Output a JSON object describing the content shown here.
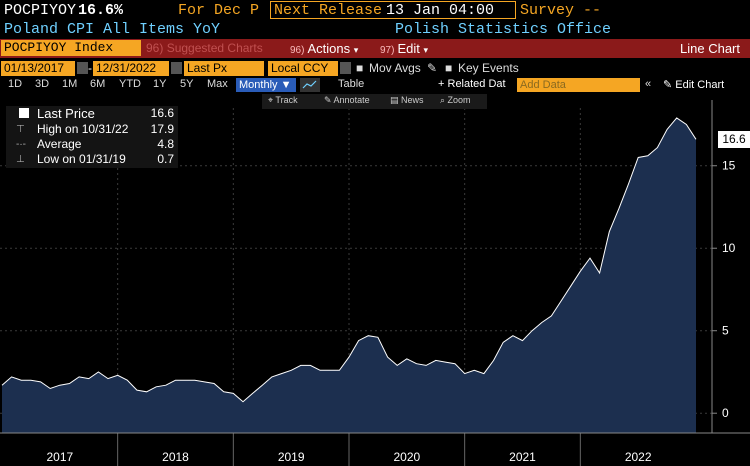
{
  "header": {
    "ticker": "POCPIYOY",
    "ticker_value": "16.6%",
    "for_label": "For Dec P",
    "next_release_label": "Next Release",
    "next_release_value": "13 Jan 04:00",
    "survey_label": "Survey --",
    "security_name": "Poland CPI All Items YoY",
    "source": "Polish Statistics Office"
  },
  "menu_bar": {
    "index_field": "POCPIYOY Index",
    "suggested_label": "Suggested Charts",
    "suggested_num": "96",
    "actions_num": "96)",
    "actions_label": "Actions",
    "edit_num": "97)",
    "edit_label": "Edit",
    "view_label": "Line Chart"
  },
  "controls": {
    "start_date": "01/13/2017",
    "date_sep": "-",
    "end_date": "12/31/2022",
    "price_field": "Last Px",
    "currency_field": "Local CCY",
    "mov_avgs": "Mov Avgs",
    "key_events": "Key Events",
    "periods": [
      "1D",
      "3D",
      "1M",
      "6M",
      "YTD",
      "1Y",
      "5Y",
      "Max"
    ],
    "frequency": "Monthly",
    "table_label": "Table",
    "related_data": "Related Dat",
    "add_data_placeholder": "Add Data",
    "collapse_glyph": "«",
    "edit_chart": "Edit Chart"
  },
  "tools": {
    "track": "Track",
    "annotate": "Annotate",
    "news": "News",
    "zoom": "Zoom"
  },
  "legend": {
    "last_price_label": "Last Price",
    "last_price_value": "16.6",
    "high_label": "High on 10/31/22",
    "high_value": "17.9",
    "average_label": "Average",
    "average_value": "4.8",
    "low_label": "Low on 01/31/19",
    "low_value": "0.7"
  },
  "colors": {
    "accent_orange": "#f5a623",
    "menu_red": "#8b1a1a",
    "name_blue": "#6fd0ff",
    "area_fill": "#1c2f4f",
    "area_line": "#ffffff"
  },
  "chart_data": {
    "type": "area",
    "x_axis": {
      "labels": [
        "2017",
        "2018",
        "2019",
        "2020",
        "2021",
        "2022"
      ]
    },
    "y_axis": {
      "ticks": [
        0,
        5,
        10,
        15
      ],
      "range": [
        -1.2,
        18.5
      ],
      "side": "right"
    },
    "last_value_label": "16.6",
    "series": [
      {
        "values": [
          1.7,
          2.2,
          2.0,
          2.0,
          1.9,
          1.5,
          1.7,
          1.8,
          2.2,
          2.1,
          2.5,
          2.1,
          2.3,
          2.0,
          1.4,
          1.3,
          1.6,
          1.7,
          2.0,
          2.0,
          2.0,
          1.9,
          1.8,
          1.3,
          1.2,
          0.7,
          1.2,
          1.7,
          2.2,
          2.4,
          2.6,
          2.9,
          2.9,
          2.6,
          2.6,
          2.6,
          3.4,
          4.4,
          4.7,
          4.6,
          3.4,
          2.9,
          3.3,
          3.0,
          2.9,
          3.2,
          3.1,
          3.0,
          2.4,
          2.6,
          2.4,
          3.2,
          4.3,
          4.7,
          4.4,
          5.0,
          5.5,
          5.9,
          6.8,
          7.7,
          8.6,
          9.4,
          8.5,
          11.0,
          12.4,
          13.9,
          15.5,
          15.6,
          16.1,
          17.2,
          17.9,
          17.5,
          16.6
        ]
      }
    ]
  }
}
